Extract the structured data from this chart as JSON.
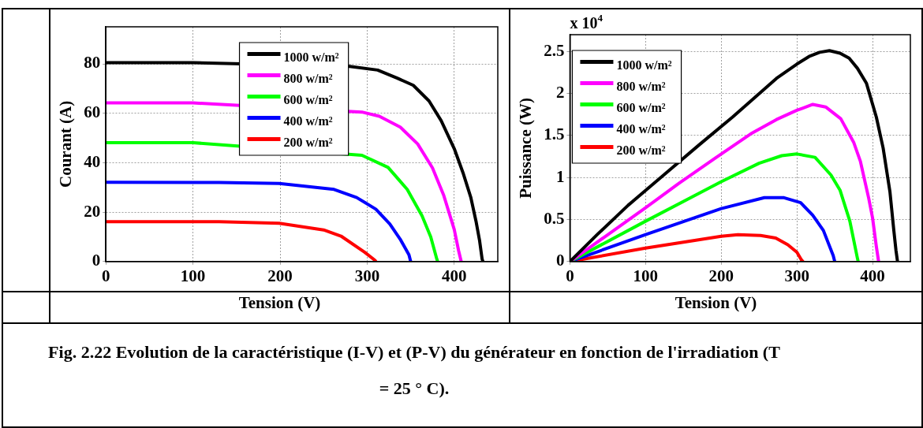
{
  "chart_data": [
    {
      "type": "line",
      "xlabel": "Tension (V)",
      "ylabel": "Courant (A)",
      "xlim": [
        0,
        450
      ],
      "xticks": [
        0,
        100,
        200,
        300,
        400
      ],
      "ylim": [
        0,
        95
      ],
      "yticks": [
        0,
        20,
        40,
        60,
        80
      ],
      "grid": true,
      "legend": "top",
      "line_style": "solid",
      "annotations": [
        "Fig. 2.22 Evolution de la caractéristique (I-V) et (P-V) du générateur en fonction de l'irradiation (T = 25 ° C)."
      ],
      "series": [
        {
          "name": "1000 w/m²",
          "color": "#000000",
          "x": [
            0,
            100,
            280,
            312,
            334,
            353,
            371,
            385,
            400,
            410,
            419,
            425,
            429,
            432,
            433
          ],
          "values": [
            80.5,
            80.5,
            79,
            77.5,
            74.3,
            71.3,
            65,
            57,
            45.7,
            36,
            26,
            16.3,
            8.7,
            1,
            0
          ]
        },
        {
          "name": "800 w/m²",
          "color": "#ff00ff",
          "x": [
            0,
            100,
            294,
            314,
            338,
            358,
            375,
            388,
            400,
            405,
            408
          ],
          "values": [
            64.2,
            64.2,
            60.5,
            58.8,
            54.4,
            47.6,
            37.9,
            26.7,
            13,
            4.4,
            0
          ]
        },
        {
          "name": "600 w/m²",
          "color": "#00ff00",
          "x": [
            0,
            100,
            294,
            324,
            346,
            363,
            373,
            380,
            381
          ],
          "values": [
            48.1,
            48.1,
            43,
            38.1,
            29.2,
            18.5,
            10,
            1,
            0
          ]
        },
        {
          "name": "400 w/m²",
          "color": "#0000ff",
          "x": [
            0,
            130,
            199,
            262,
            288,
            310,
            326,
            338,
            348,
            350
          ],
          "values": [
            32.1,
            32,
            31.6,
            29.2,
            25.9,
            21.2,
            15.2,
            9,
            2.7,
            0
          ]
        },
        {
          "name": "200 w/m²",
          "color": "#ff0000",
          "x": [
            0,
            130,
            199,
            250,
            270,
            297,
            309,
            310
          ],
          "values": [
            16.1,
            16.1,
            15.5,
            12.8,
            10.3,
            3.8,
            0.5,
            0
          ]
        }
      ]
    },
    {
      "type": "line",
      "xlabel": "Tension (V)",
      "ylabel": "Puissance (W)",
      "xlim": [
        0,
        450
      ],
      "xticks": [
        0,
        100,
        200,
        300,
        400
      ],
      "ylim": [
        0,
        2.7
      ],
      "yticks": [
        0,
        0.5,
        1,
        1.5,
        2,
        2.5
      ],
      "grid": true,
      "legend": "top left",
      "line_style": "solid",
      "annotations": [
        "x 10$^{4}$"
      ],
      "series": [
        {
          "name": "1000 w/m²",
          "color": "#000000",
          "x": [
            0,
            36,
            77,
            124,
            171,
            215,
            273,
            300,
            316,
            330,
            343,
            357,
            369,
            380,
            392,
            405,
            414,
            423,
            428,
            431,
            433
          ],
          "values": [
            0,
            0.32,
            0.67,
            1.03,
            1.39,
            1.72,
            2.18,
            2.35,
            2.44,
            2.49,
            2.51,
            2.48,
            2.42,
            2.3,
            2.12,
            1.72,
            1.35,
            0.83,
            0.38,
            0.13,
            0
          ]
        },
        {
          "name": "800 w/m²",
          "color": "#ff00ff",
          "x": [
            0,
            47,
            97,
            144,
            192,
            239,
            273,
            300,
            321,
            338,
            358,
            375,
            384,
            395,
            400,
            405,
            408
          ],
          "values": [
            0,
            0.3,
            0.62,
            0.93,
            1.23,
            1.52,
            1.69,
            1.8,
            1.87,
            1.84,
            1.7,
            1.42,
            1.19,
            0.75,
            0.52,
            0.18,
            0
          ]
        },
        {
          "name": "600 w/m²",
          "color": "#00ff00",
          "x": [
            0,
            100,
            200,
            250,
            280,
            300,
            324,
            345,
            357,
            370,
            380,
            381
          ],
          "values": [
            0,
            0.48,
            0.95,
            1.17,
            1.26,
            1.28,
            1.24,
            1.03,
            0.85,
            0.48,
            0.04,
            0
          ]
        },
        {
          "name": "400 w/m²",
          "color": "#0000ff",
          "x": [
            0,
            100,
            200,
            257,
            283,
            305,
            321,
            335,
            348,
            350
          ],
          "values": [
            0,
            0.32,
            0.63,
            0.76,
            0.76,
            0.7,
            0.55,
            0.37,
            0.07,
            0
          ]
        },
        {
          "name": "200 w/m²",
          "color": "#ff0000",
          "x": [
            0,
            100,
            200,
            222,
            252,
            272,
            288,
            300,
            306,
            308
          ],
          "values": [
            0,
            0.16,
            0.3,
            0.32,
            0.31,
            0.28,
            0.2,
            0.11,
            0.02,
            0
          ]
        }
      ]
    }
  ]
}
